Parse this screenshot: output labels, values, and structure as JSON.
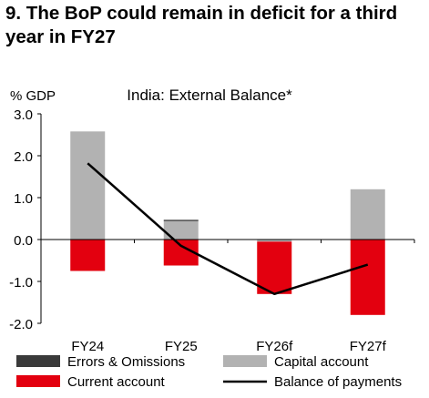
{
  "figure_title": "9. The BoP could remain in deficit for a third year in FY27",
  "chart_data": {
    "type": "bar",
    "stacked": true,
    "title": "India: External Balance*",
    "ylabel": "% GDP",
    "xlabel": "",
    "ylim": [
      -2.0,
      3.0
    ],
    "yticks": [
      "3.0",
      "2.0",
      "1.0",
      "0.0",
      "-1.0",
      "-2.0"
    ],
    "ytick_values": [
      3,
      2,
      1,
      0,
      -1,
      -2
    ],
    "grid": false,
    "legend_position": "bottom",
    "categories": [
      "FY24",
      "FY25",
      "FY26f",
      "FY27f"
    ],
    "series": [
      {
        "name": "Errors & Omissions",
        "type": "bar",
        "color": "#3a3a3a",
        "values": [
          0.0,
          0.03,
          0.0,
          0.0
        ]
      },
      {
        "name": "Capital account",
        "type": "bar",
        "color": "#b2b2b2",
        "values": [
          2.58,
          0.44,
          -0.05,
          1.2
        ]
      },
      {
        "name": "Current account",
        "type": "bar",
        "color": "#e3000f",
        "values": [
          -0.75,
          -0.62,
          -1.25,
          -1.8
        ]
      },
      {
        "name": "Balance of payments",
        "type": "line",
        "color": "#000000",
        "values": [
          1.82,
          -0.15,
          -1.3,
          -0.6
        ]
      }
    ]
  }
}
